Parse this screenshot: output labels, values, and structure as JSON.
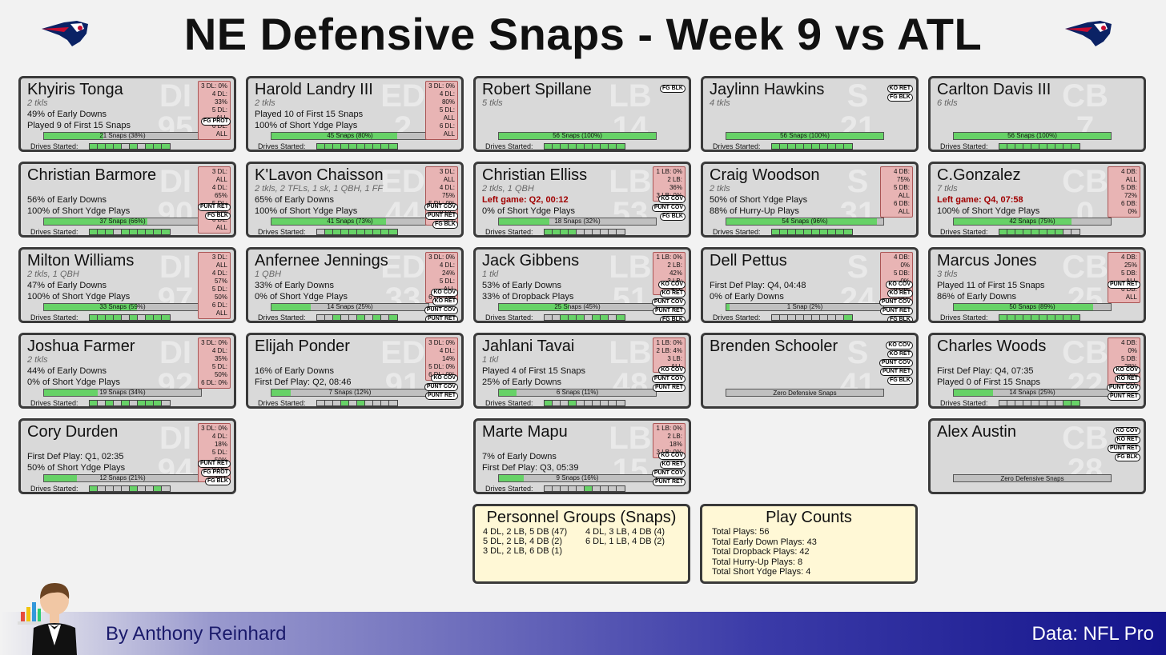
{
  "title": "NE Defensive Snaps - Week 9 vs ATL",
  "drives_label": "Drives Started:",
  "columns": [
    [
      {
        "name": "Khyiris Tonga",
        "pos": "DI",
        "num": "95",
        "sub": "2 tkls",
        "lines": [
          "49% of Early Downs",
          "Played 9 of First 15 Snaps"
        ],
        "snaps": "21 Snaps (38%)",
        "pct": 0.38,
        "drives": [
          1,
          1,
          1,
          1,
          0,
          1,
          0,
          1,
          1,
          1
        ],
        "box": [
          "3 DL: 0%",
          "4 DL: 33%",
          "5 DL: ALL",
          "6 DL: ALL"
        ],
        "st": [
          "FG PROT"
        ]
      },
      {
        "name": "Christian Barmore",
        "pos": "DI",
        "num": "90",
        "sub": "",
        "lines": [
          "56% of Early Downs",
          "100% of Short Ydge Plays"
        ],
        "snaps": "37 Snaps (66%)",
        "pct": 0.66,
        "drives": [
          1,
          1,
          1,
          0,
          1,
          1,
          1,
          1,
          1,
          1
        ],
        "box": [
          "3 DL: ALL",
          "4 DL: 65%",
          "5 DL: 50%",
          "6 DL: ALL"
        ],
        "st": [
          "PUNT RET",
          "FG BLK"
        ]
      },
      {
        "name": "Milton Williams",
        "pos": "DI",
        "num": "97",
        "sub": "2 tkls, 1 QBH",
        "lines": [
          "47% of Early Downs",
          "100% of Short Ydge Plays"
        ],
        "snaps": "33 Snaps (59%)",
        "pct": 0.59,
        "drives": [
          1,
          1,
          1,
          1,
          0,
          1,
          0,
          1,
          1,
          1
        ],
        "box": [
          "3 DL: ALL",
          "4 DL: 57%",
          "5 DL: 50%",
          "6 DL: ALL"
        ],
        "st": []
      },
      {
        "name": "Joshua Farmer",
        "pos": "DI",
        "num": "92",
        "sub": "2 tkls",
        "lines": [
          "44% of Early Downs",
          "0% of Short Ydge Plays"
        ],
        "snaps": "19 Snaps (34%)",
        "pct": 0.34,
        "drives": [
          1,
          0,
          1,
          0,
          1,
          0,
          1,
          1,
          1,
          0
        ],
        "box": [
          "3 DL: 0%",
          "4 DL: 35%",
          "5 DL: 50%",
          "6 DL: 0%"
        ],
        "st": []
      },
      {
        "name": "Cory Durden",
        "pos": "DI",
        "num": "94",
        "sub": "",
        "lines": [
          "First Def Play: Q1, 02:35",
          "50% of Short Ydge Plays"
        ],
        "snaps": "12 Snaps (21%)",
        "pct": 0.21,
        "drives": [
          1,
          0,
          0,
          0,
          0,
          1,
          0,
          0,
          1,
          0
        ],
        "box": [
          "3 DL: 0%",
          "4 DL: 18%",
          "5 DL: 50%",
          "6 DL: ALL"
        ],
        "st": [
          "PUNT RET",
          "FG PROT",
          "FG BLK"
        ]
      }
    ],
    [
      {
        "name": "Harold Landry III",
        "pos": "ED",
        "num": "2",
        "sub": "2 tkls",
        "lines": [
          "Played 10 of First 15 Snaps",
          "100% of Short Ydge Plays"
        ],
        "snaps": "45 Snaps (80%)",
        "pct": 0.8,
        "drives": [
          1,
          1,
          1,
          1,
          1,
          1,
          1,
          1,
          1,
          1
        ],
        "box": [
          "3 DL: 0%",
          "4 DL: 80%",
          "5 DL: ALL",
          "6 DL: ALL"
        ],
        "st": []
      },
      {
        "name": "K'Lavon Chaisson",
        "pos": "ED",
        "num": "44",
        "sub": "2 tkls, 2 TFLs, 1 sk, 1 QBH, 1 FF",
        "lines": [
          "65% of Early Downs",
          "100% of Short Ydge Plays"
        ],
        "snaps": "41 Snaps (73%)",
        "pct": 0.73,
        "drives": [
          0,
          1,
          1,
          1,
          1,
          1,
          1,
          1,
          1,
          1
        ],
        "box": [
          "3 DL: ALL",
          "4 DL: 75%",
          "5 DL: 0%",
          "6 DL: ALL"
        ],
        "st": [
          "PUNT COV",
          "PUNT RET",
          "FG BLK"
        ]
      },
      {
        "name": "Anfernee Jennings",
        "pos": "ED",
        "num": "33",
        "sub": "1 QBH",
        "lines": [
          "33% of Early Downs",
          "0% of Short Ydge Plays"
        ],
        "snaps": "14 Snaps (25%)",
        "pct": 0.25,
        "drives": [
          0,
          0,
          1,
          0,
          0,
          1,
          0,
          1,
          0,
          1
        ],
        "box": [
          "3 DL: 0%",
          "4 DL: 24%",
          "5 DL: ALL",
          "6 DL: 0%"
        ],
        "st": [
          "KO COV",
          "KO RET",
          "PUNT COV",
          "PUNT RET",
          "FG BLK"
        ]
      },
      {
        "name": "Elijah Ponder",
        "pos": "ED",
        "num": "91",
        "sub": "",
        "lines": [
          "16% of Early Downs",
          "First Def Play: Q2, 08:46"
        ],
        "snaps": "7 Snaps (12%)",
        "pct": 0.12,
        "drives": [
          0,
          0,
          0,
          1,
          0,
          1,
          0,
          0,
          0,
          0
        ],
        "box": [
          "3 DL: 0%",
          "4 DL: 14%",
          "5 DL: 0%",
          "6 DL: 0%"
        ],
        "st": [
          "KO COV",
          "PUNT COV",
          "PUNT RET"
        ]
      }
    ],
    [
      {
        "name": "Robert Spillane",
        "pos": "LB",
        "num": "14",
        "sub": "5 tkls",
        "lines": [
          "",
          ""
        ],
        "snaps": "56 Snaps (100%)",
        "pct": 1.0,
        "drives": [
          1,
          1,
          1,
          1,
          1,
          1,
          1,
          1,
          1,
          1
        ],
        "box": [],
        "st": [
          "FG BLK"
        ],
        "sttop": true
      },
      {
        "name": "Christian Elliss",
        "pos": "LB",
        "num": "53",
        "sub": "2 tkls, 1 QBH",
        "lines": [
          "Left game: Q2, 00:12",
          "0% of Short Ydge Plays"
        ],
        "red": true,
        "snaps": "18 Snaps (32%)",
        "pct": 0.32,
        "drives": [
          1,
          1,
          1,
          1,
          0,
          0,
          0,
          0,
          0,
          0
        ],
        "box": [
          "1 LB: 0%",
          "2 LB: 36%",
          "3 LB: 0%"
        ],
        "st": [
          "KO COV",
          "PUNT COV",
          "FG BLK"
        ]
      },
      {
        "name": "Jack Gibbens",
        "pos": "LB",
        "num": "51",
        "sub": "1 tkl",
        "lines": [
          "53% of Early Downs",
          "33% of Dropback Plays"
        ],
        "snaps": "25 Snaps (45%)",
        "pct": 0.45,
        "drives": [
          0,
          0,
          1,
          1,
          1,
          0,
          1,
          1,
          0,
          1
        ],
        "box": [
          "1 LB: 0%",
          "2 LB: 42%",
          "3 LB: ALL"
        ],
        "st": [
          "KO COV",
          "KO RET",
          "PUNT COV",
          "PUNT RET",
          "FG BLK"
        ]
      },
      {
        "name": "Jahlani Tavai",
        "pos": "LB",
        "num": "48",
        "sub": "1 tkl",
        "lines": [
          "Played 4 of First 15 Snaps",
          "25% of Early Downs"
        ],
        "snaps": "6 Snaps (11%)",
        "pct": 0.11,
        "drives": [
          1,
          0,
          0,
          1,
          0,
          0,
          0,
          0,
          0,
          0
        ],
        "box": [
          "1 LB: 0%",
          "2 LB: 4%",
          "3 LB: ALL"
        ],
        "st": [
          "KO COV",
          "PUNT COV",
          "PUNT RET"
        ]
      },
      {
        "name": "Marte Mapu",
        "pos": "LB",
        "num": "15",
        "sub": "",
        "lines": [
          "7% of Early Downs",
          "First Def Play: Q3, 05:39"
        ],
        "snaps": "9 Snaps (16%)",
        "pct": 0.16,
        "drives": [
          0,
          0,
          0,
          0,
          0,
          1,
          0,
          0,
          0,
          0
        ],
        "box": [
          "1 LB: 0%",
          "2 LB: 18%",
          "3 LB: 0%"
        ],
        "st": [
          "KO COV",
          "KO RET",
          "PUNT COV",
          "PUNT RET"
        ]
      }
    ],
    [
      {
        "name": "Jaylinn Hawkins",
        "pos": "S",
        "num": "21",
        "sub": "4 tkls",
        "lines": [
          "",
          ""
        ],
        "snaps": "56 Snaps (100%)",
        "pct": 1.0,
        "drives": [
          1,
          1,
          1,
          1,
          1,
          1,
          1,
          1,
          1,
          1
        ],
        "box": [],
        "st": [
          "KO RET",
          "FG BLK"
        ],
        "sttop": true
      },
      {
        "name": "Craig Woodson",
        "pos": "S",
        "num": "31",
        "sub": "2 tkls",
        "lines": [
          "50% of Short Ydge Plays",
          "88% of Hurry-Up Plays"
        ],
        "snaps": "54 Snaps (96%)",
        "pct": 0.96,
        "drives": [
          1,
          1,
          1,
          1,
          1,
          1,
          1,
          1,
          1,
          1
        ],
        "box": [
          "4 DB: 75%",
          "5 DB: ALL",
          "6 DB: ALL"
        ],
        "st": []
      },
      {
        "name": "Dell Pettus",
        "pos": "S",
        "num": "24",
        "sub": "",
        "lines": [
          "First Def Play: Q4, 04:48",
          "0% of Early Downs"
        ],
        "snaps": "1 Snap (2%)",
        "pct": 0.02,
        "drives": [
          0,
          0,
          0,
          0,
          0,
          0,
          0,
          0,
          0,
          1
        ],
        "box": [
          "4 DB: 0%",
          "5 DB: 0%",
          "6 DB: ALL"
        ],
        "st": [
          "KO COV",
          "KO RET",
          "PUNT COV",
          "PUNT RET",
          "FG BLK"
        ]
      },
      {
        "name": "Brenden Schooler",
        "pos": "S",
        "num": "41",
        "sub": "",
        "lines": [
          "",
          ""
        ],
        "zero": "Zero Defensive Snaps",
        "box": [],
        "st": [
          "KO COV",
          "KO RET",
          "PUNT COV",
          "PUNT RET",
          "FG BLK"
        ],
        "sttop": true
      }
    ],
    [
      {
        "name": "Carlton Davis III",
        "pos": "CB",
        "num": "7",
        "sub": "6 tkls",
        "lines": [
          "",
          ""
        ],
        "snaps": "56 Snaps (100%)",
        "pct": 1.0,
        "drives": [
          1,
          1,
          1,
          1,
          1,
          1,
          1,
          1,
          1,
          1
        ],
        "box": [],
        "st": []
      },
      {
        "name": "C.Gonzalez",
        "pos": "CB",
        "num": "0",
        "sub": "7 tkls",
        "lines": [
          "Left game: Q4, 07:58",
          "100% of Short Ydge Plays"
        ],
        "red": true,
        "snaps": "42 Snaps (75%)",
        "pct": 0.75,
        "drives": [
          1,
          1,
          1,
          1,
          1,
          1,
          1,
          1,
          0,
          0
        ],
        "box": [
          "4 DB: ALL",
          "5 DB: 72%",
          "6 DB: 0%"
        ],
        "st": []
      },
      {
        "name": "Marcus Jones",
        "pos": "CB",
        "num": "25",
        "sub": "3 tkls",
        "lines": [
          "Played 11 of First 15 Snaps",
          "86% of Early Downs"
        ],
        "snaps": "50 Snaps (89%)",
        "pct": 0.89,
        "drives": [
          1,
          1,
          1,
          1,
          1,
          1,
          1,
          1,
          1,
          1
        ],
        "box": [
          "4 DB: 25%",
          "5 DB: ALL",
          "6 DB: ALL"
        ],
        "st": [
          "PUNT RET"
        ]
      },
      {
        "name": "Charles Woods",
        "pos": "CB",
        "num": "22",
        "sub": "",
        "lines": [
          "First Def Play: Q4, 07:35",
          "Played 0 of First 15 Snaps"
        ],
        "snaps": "14 Snaps (25%)",
        "pct": 0.25,
        "drives": [
          0,
          0,
          0,
          0,
          0,
          0,
          0,
          0,
          1,
          1
        ],
        "box": [
          "4 DB: 0%",
          "5 DB: 28%",
          "6 DB: ALL"
        ],
        "st": [
          "KO COV",
          "KO RET",
          "PUNT COV",
          "PUNT RET"
        ]
      },
      {
        "name": "Alex Austin",
        "pos": "CB",
        "num": "28",
        "sub": "",
        "lines": [
          "",
          ""
        ],
        "zero": "Zero Defensive Snaps",
        "box": [],
        "st": [
          "KO COV",
          "KO RET",
          "PUNT RET",
          "FG BLK"
        ],
        "sttop": true
      }
    ]
  ],
  "personnel": {
    "title": "Personnel Groups (Snaps)",
    "left": [
      "4 DL, 2 LB, 5 DB (47)",
      "5 DL, 2 LB, 4 DB (2)",
      "3 DL, 2 LB, 6 DB (1)"
    ],
    "right": [
      "4 DL, 3 LB, 4 DB (4)",
      "6 DL, 1 LB, 4 DB (2)"
    ]
  },
  "playcounts": {
    "title": "Play Counts",
    "items": [
      "Total Plays: 56",
      "Total Early Down Plays: 43",
      "Total Dropback Plays: 42",
      "Total Hurry-Up Plays: 8",
      "Total Short Ydge Plays: 4"
    ]
  },
  "footer": {
    "author": "By Anthony Reinhard",
    "source": "Data: NFL Pro"
  },
  "colors": {
    "bar_green": "#67d267",
    "box_red": "#e8b4b4",
    "panel": "#fff8d6",
    "footer_dark": "#14148c"
  }
}
